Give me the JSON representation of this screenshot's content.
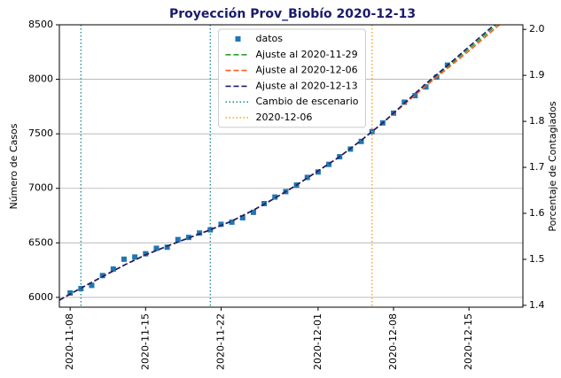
{
  "chart_data": {
    "type": "line",
    "title": "Proyección Prov_Biobío 2020-12-13",
    "ylabel": "Número de Casos",
    "y2label": "Porcentaje de Contagiados",
    "xlim": [
      "2020-11-07",
      "2020-12-20"
    ],
    "xticks": [
      "2020-11-08",
      "2020-11-15",
      "2020-11-22",
      "2020-12-01",
      "2020-12-08",
      "2020-12-15"
    ],
    "ylim": [
      5910,
      8500
    ],
    "yticks": [
      6000,
      6500,
      7000,
      7500,
      8000,
      8500
    ],
    "y2lim": [
      1.396,
      2.01
    ],
    "y2ticks": [
      1.4,
      1.5,
      1.6,
      1.7,
      1.8,
      1.9,
      {
        "value": 2,
        "label": "2.0"
      }
    ],
    "grid": true,
    "legend": "upper center",
    "series": [
      {
        "name": "datos",
        "style": "markers",
        "color": "#1f77b4",
        "x": [
          "2020-11-08",
          "2020-11-09",
          "2020-11-10",
          "2020-11-11",
          "2020-11-12",
          "2020-11-13",
          "2020-11-14",
          "2020-11-15",
          "2020-11-16",
          "2020-11-17",
          "2020-11-18",
          "2020-11-19",
          "2020-11-20",
          "2020-11-21",
          "2020-11-22",
          "2020-11-23",
          "2020-11-24",
          "2020-11-25",
          "2020-11-26",
          "2020-11-27",
          "2020-11-28",
          "2020-11-29",
          "2020-11-30",
          "2020-12-01",
          "2020-12-02",
          "2020-12-03",
          "2020-12-04",
          "2020-12-05",
          "2020-12-06",
          "2020-12-07",
          "2020-12-08",
          "2020-12-09",
          "2020-12-10",
          "2020-12-11",
          "2020-12-12",
          "2020-12-13"
        ],
        "values": [
          6040,
          6080,
          6110,
          6200,
          6260,
          6350,
          6370,
          6400,
          6450,
          6460,
          6530,
          6550,
          6590,
          6620,
          6670,
          6690,
          6730,
          6780,
          6860,
          6920,
          6970,
          7030,
          7100,
          7150,
          7220,
          7290,
          7360,
          7430,
          7520,
          7600,
          7690,
          7790,
          7850,
          7930,
          8020,
          8130
        ]
      },
      {
        "name": "Ajuste al 2020-11-29",
        "style": "dashed",
        "color": "#2ca02c",
        "x": [
          "2020-11-07",
          "2020-11-09",
          "2020-11-11",
          "2020-11-13",
          "2020-11-15",
          "2020-11-17",
          "2020-11-19",
          "2020-11-21",
          "2020-11-23",
          "2020-11-25",
          "2020-11-27",
          "2020-11-29",
          "2020-12-01",
          "2020-12-03",
          "2020-12-05",
          "2020-12-07",
          "2020-12-09",
          "2020-12-11",
          "2020-12-13",
          "2020-12-15",
          "2020-12-17",
          "2020-12-19"
        ],
        "values": [
          5975,
          6085,
          6190,
          6295,
          6390,
          6470,
          6545,
          6620,
          6700,
          6800,
          6910,
          7030,
          7160,
          7290,
          7440,
          7600,
          7775,
          7950,
          8115,
          8280,
          8450,
          8630
        ]
      },
      {
        "name": "Ajuste al 2020-12-06",
        "style": "dashed",
        "color": "#ff5a1f",
        "x": [
          "2020-11-07",
          "2020-11-09",
          "2020-11-11",
          "2020-11-13",
          "2020-11-15",
          "2020-11-17",
          "2020-11-19",
          "2020-11-21",
          "2020-11-23",
          "2020-11-25",
          "2020-11-27",
          "2020-11-29",
          "2020-12-01",
          "2020-12-03",
          "2020-12-05",
          "2020-12-07",
          "2020-12-09",
          "2020-12-11",
          "2020-12-13",
          "2020-12-15",
          "2020-12-17",
          "2020-12-19"
        ],
        "values": [
          5975,
          6085,
          6190,
          6295,
          6390,
          6470,
          6545,
          6620,
          6700,
          6800,
          6910,
          7030,
          7160,
          7290,
          7440,
          7600,
          7770,
          7940,
          8100,
          8260,
          8430,
          8600
        ]
      },
      {
        "name": "Ajuste al 2020-12-13",
        "style": "dashed",
        "color": "#1a1a6e",
        "x": [
          "2020-11-07",
          "2020-11-09",
          "2020-11-11",
          "2020-11-13",
          "2020-11-15",
          "2020-11-17",
          "2020-11-19",
          "2020-11-21",
          "2020-11-23",
          "2020-11-25",
          "2020-11-27",
          "2020-11-29",
          "2020-12-01",
          "2020-12-03",
          "2020-12-05",
          "2020-12-07",
          "2020-12-09",
          "2020-12-11",
          "2020-12-13",
          "2020-12-15",
          "2020-12-17",
          "2020-12-19"
        ],
        "values": [
          5975,
          6085,
          6190,
          6295,
          6390,
          6470,
          6545,
          6620,
          6700,
          6800,
          6910,
          7030,
          7160,
          7290,
          7440,
          7600,
          7780,
          7960,
          8127,
          8300,
          8470,
          8650
        ]
      },
      {
        "name": "Cambio de escenario",
        "style": "vline",
        "color": "#1f8fa0",
        "x": [
          "2020-11-09",
          "2020-11-21"
        ]
      },
      {
        "name": "2020-12-06",
        "style": "vline",
        "color": "#ff9f1c",
        "x": [
          "2020-12-06"
        ]
      }
    ]
  }
}
